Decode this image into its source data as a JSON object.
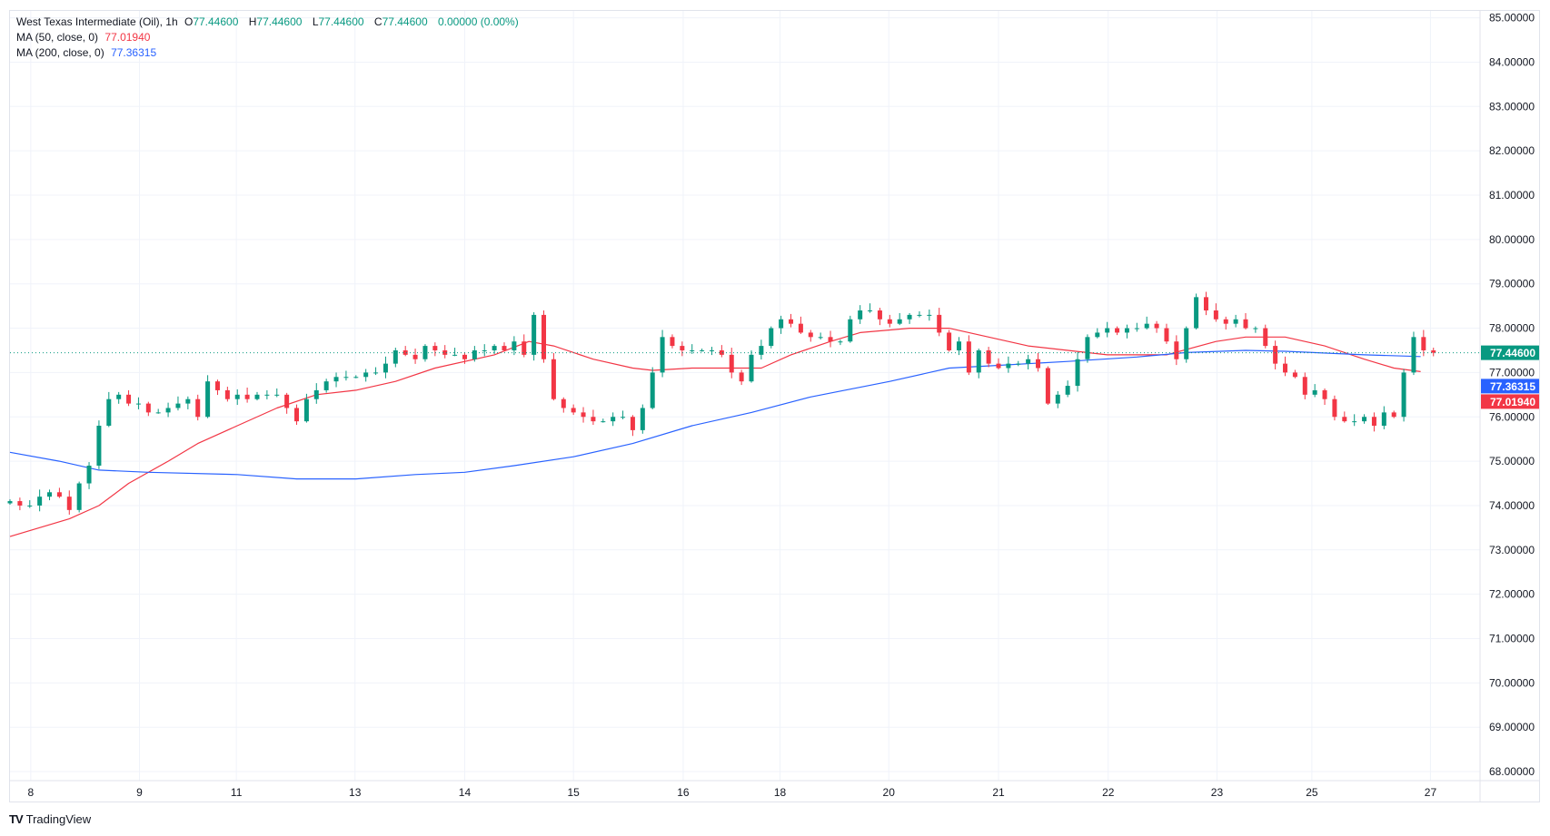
{
  "header": {
    "symbol": "West Texas Intermediate (Oil), 1h",
    "open_label": "O",
    "open": "77.44600",
    "high_label": "H",
    "high": "77.44600",
    "low_label": "L",
    "low": "77.44600",
    "close_label": "C",
    "close": "77.44600",
    "change": "0.00000 (0.00%)",
    "ma50_label": "MA (50, close, 0)",
    "ma50_value": "77.01940",
    "ma200_label": "MA (200, close, 0)",
    "ma200_value": "77.36315"
  },
  "branding": {
    "logo_text": "TradingView",
    "logo_mark": "TV"
  },
  "colors": {
    "up": "#089981",
    "down": "#f23645",
    "ma50": "#f23645",
    "ma200": "#2962ff",
    "grid": "#f0f3fa"
  },
  "chart_data": {
    "type": "candlestick",
    "title": "West Texas Intermediate (Oil), 1h",
    "ylim": [
      68,
      85
    ],
    "yticks": [
      "85.00000",
      "84.00000",
      "83.00000",
      "82.00000",
      "81.00000",
      "80.00000",
      "79.00000",
      "78.00000",
      "77.00000",
      "76.00000",
      "75.00000",
      "74.00000",
      "73.00000",
      "72.00000",
      "71.00000",
      "70.00000",
      "69.00000",
      "68.00000"
    ],
    "xticks": [
      {
        "label": "8",
        "bar": 2.1
      },
      {
        "label": "9",
        "bar": 13.1
      },
      {
        "label": "11",
        "bar": 22.9
      },
      {
        "label": "13",
        "bar": 34.9
      },
      {
        "label": "14",
        "bar": 46
      },
      {
        "label": "15",
        "bar": 57
      },
      {
        "label": "16",
        "bar": 68.1
      },
      {
        "label": "18",
        "bar": 77.9
      },
      {
        "label": "20",
        "bar": 88.9
      },
      {
        "label": "21",
        "bar": 100
      },
      {
        "label": "22",
        "bar": 111.1
      },
      {
        "label": "23",
        "bar": 122.1
      },
      {
        "label": "25",
        "bar": 131.7
      },
      {
        "label": "27",
        "bar": 143.7
      }
    ],
    "closes": [
      74.1,
      74.0,
      74.0,
      74.2,
      74.3,
      74.2,
      73.9,
      74.5,
      74.9,
      75.8,
      76.4,
      76.5,
      76.3,
      76.3,
      76.1,
      76.1,
      76.2,
      76.3,
      76.4,
      76.0,
      76.8,
      76.6,
      76.4,
      76.5,
      76.4,
      76.5,
      76.5,
      76.5,
      76.2,
      75.9,
      76.4,
      76.6,
      76.8,
      76.9,
      76.9,
      76.9,
      77.0,
      77.0,
      77.2,
      77.5,
      77.4,
      77.3,
      77.6,
      77.5,
      77.4,
      77.4,
      77.3,
      77.5,
      77.5,
      77.6,
      77.5,
      77.7,
      77.4,
      78.3,
      77.3,
      76.4,
      76.2,
      76.1,
      76.0,
      75.9,
      75.9,
      76.0,
      76.0,
      75.7,
      76.2,
      77.0,
      77.8,
      77.6,
      77.5,
      77.5,
      77.5,
      77.5,
      77.4,
      77.0,
      76.8,
      77.4,
      77.6,
      78.0,
      78.2,
      78.1,
      77.9,
      77.8,
      77.8,
      77.7,
      77.7,
      78.2,
      78.4,
      78.4,
      78.2,
      78.1,
      78.2,
      78.3,
      78.3,
      78.3,
      77.9,
      77.5,
      77.7,
      77.0,
      77.5,
      77.2,
      77.1,
      77.2,
      77.2,
      77.3,
      77.1,
      76.3,
      76.5,
      76.7,
      77.3,
      77.8,
      77.9,
      78.0,
      77.9,
      78.0,
      78.0,
      78.1,
      78.0,
      77.7,
      77.3,
      78.0,
      78.7,
      78.4,
      78.2,
      78.1,
      78.2,
      78.0,
      78.0,
      77.6,
      77.2,
      77.0,
      76.9,
      76.5,
      76.6,
      76.4,
      76.0,
      75.9,
      75.9,
      76.0,
      75.8,
      76.1,
      76.0,
      77.0,
      77.8,
      77.5,
      77.446
    ],
    "series": [
      {
        "name": "MA (50, close, 0)",
        "points": [
          [
            0,
            73.3
          ],
          [
            6,
            73.7
          ],
          [
            9,
            74.0
          ],
          [
            12,
            74.5
          ],
          [
            16,
            75.0
          ],
          [
            19,
            75.4
          ],
          [
            23,
            75.8
          ],
          [
            27,
            76.2
          ],
          [
            31,
            76.5
          ],
          [
            35,
            76.6
          ],
          [
            39,
            76.8
          ],
          [
            43,
            77.1
          ],
          [
            49,
            77.4
          ],
          [
            52.5,
            77.7
          ],
          [
            55,
            77.6
          ],
          [
            59,
            77.3
          ],
          [
            63,
            77.1
          ],
          [
            65,
            77.05
          ],
          [
            69,
            77.1
          ],
          [
            73,
            77.1
          ],
          [
            76,
            77.1
          ],
          [
            79,
            77.4
          ],
          [
            83,
            77.7
          ],
          [
            86,
            77.9
          ],
          [
            91,
            78.0
          ],
          [
            95,
            78.0
          ],
          [
            99,
            77.8
          ],
          [
            103,
            77.6
          ],
          [
            107,
            77.5
          ],
          [
            111,
            77.4
          ],
          [
            117,
            77.4
          ],
          [
            122,
            77.7
          ],
          [
            125,
            77.8
          ],
          [
            129,
            77.8
          ],
          [
            133,
            77.6
          ],
          [
            137,
            77.3
          ],
          [
            140,
            77.1
          ],
          [
            142.7,
            77.02
          ]
        ]
      },
      {
        "name": "MA (200, close, 0)",
        "points": [
          [
            0,
            75.2
          ],
          [
            5,
            75.0
          ],
          [
            9,
            74.8
          ],
          [
            14,
            74.75
          ],
          [
            23,
            74.7
          ],
          [
            29,
            74.6
          ],
          [
            35,
            74.6
          ],
          [
            41,
            74.7
          ],
          [
            46,
            74.75
          ],
          [
            51,
            74.9
          ],
          [
            57,
            75.1
          ],
          [
            63,
            75.4
          ],
          [
            69,
            75.8
          ],
          [
            75,
            76.1
          ],
          [
            81,
            76.45
          ],
          [
            89,
            76.8
          ],
          [
            95,
            77.1
          ],
          [
            99,
            77.15
          ],
          [
            107,
            77.25
          ],
          [
            114,
            77.35
          ],
          [
            119,
            77.45
          ],
          [
            125,
            77.5
          ],
          [
            129,
            77.48
          ],
          [
            137,
            77.4
          ],
          [
            142.7,
            77.36
          ]
        ]
      }
    ],
    "last_price": "77.44600",
    "ma200_last": "77.36315",
    "ma50_last": "77.01940"
  }
}
